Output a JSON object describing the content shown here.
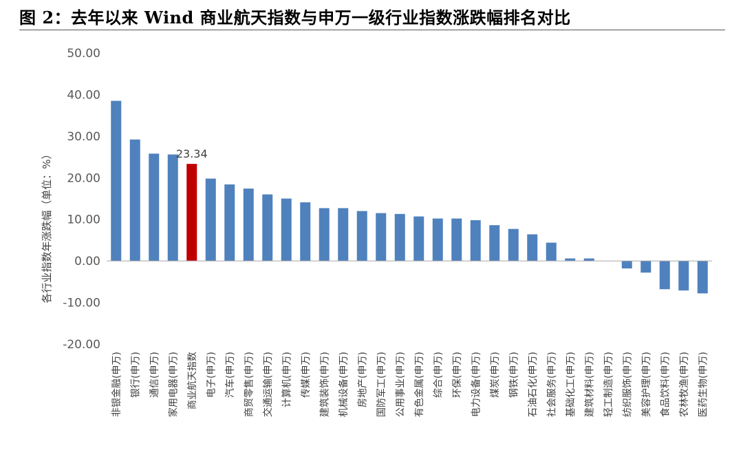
{
  "figure": {
    "title": "图 2：去年以来 Wind 商业航天指数与申万一级行业指数涨跌幅排名对比"
  },
  "colors": {
    "bar": "#4F81BD",
    "highlight": "#C00000",
    "axis": "#A6A6A6",
    "text": "#595959"
  },
  "chart_data": {
    "type": "bar",
    "title": "",
    "xlabel": "",
    "ylabel": "各行业指数年涨跌幅（单位：%）",
    "ylim": [
      -20,
      50
    ],
    "yticks": [
      50,
      40,
      30,
      20,
      10,
      0,
      -10,
      -20
    ],
    "ytick_labels": [
      "50.00",
      "40.00",
      "30.00",
      "20.00",
      "10.00",
      "0.00",
      "-10.00",
      "-20.00"
    ],
    "grid": false,
    "legend": "none",
    "highlight_index": 4,
    "data_labels": [
      {
        "index": 4,
        "text": "23.34"
      }
    ],
    "categories": [
      "非银金融(申万)",
      "银行(申万)",
      "通信(申万)",
      "家用电器(申万)",
      "商业航天指数",
      "电子(申万)",
      "汽车(申万)",
      "商贸零售(申万)",
      "交通运输(申万)",
      "计算机(申万)",
      "传媒(申万)",
      "建筑装饰(申万)",
      "机械设备(申万)",
      "房地产(申万)",
      "国防军工(申万)",
      "公用事业(申万)",
      "有色金属(申万)",
      "综合(申万)",
      "环保(申万)",
      "电力设备(申万)",
      "煤炭(申万)",
      "钢铁(申万)",
      "石油石化(申万)",
      "社会服务(申万)",
      "基础化工(申万)",
      "建筑材料(申万)",
      "轻工制造(申万)",
      "纺织服饰(申万)",
      "美容护理(申万)",
      "食品饮料(申万)",
      "农林牧渔(申万)",
      "医药生物(申万)"
    ],
    "values": [
      38.5,
      29.2,
      25.8,
      25.6,
      23.34,
      19.8,
      18.4,
      17.4,
      16.0,
      15.0,
      14.1,
      12.7,
      12.7,
      12.0,
      11.5,
      11.3,
      10.7,
      10.2,
      10.2,
      9.8,
      8.6,
      7.7,
      6.4,
      4.4,
      0.6,
      0.6,
      0.0,
      -1.8,
      -2.8,
      -6.8,
      -7.1,
      -7.8
    ]
  }
}
